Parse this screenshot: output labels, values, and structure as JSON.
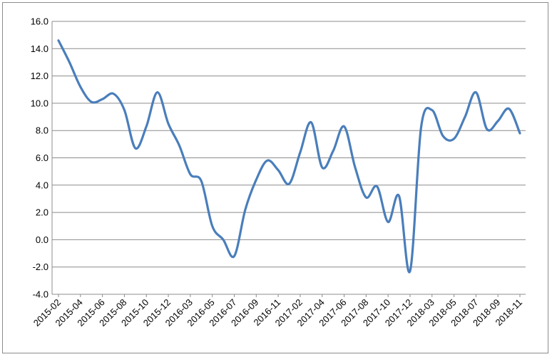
{
  "chart_data": {
    "type": "line",
    "title": "",
    "xlabel": "",
    "ylabel": "",
    "ylim": [
      -4.0,
      16.0
    ],
    "y_ticks": [
      "16.0",
      "14.0",
      "12.0",
      "10.0",
      "8.0",
      "6.0",
      "4.0",
      "2.0",
      "0.0",
      "-2.0",
      "-4.0"
    ],
    "y_tick_values": [
      16,
      14,
      12,
      10,
      8,
      6,
      4,
      2,
      0,
      -2,
      -4
    ],
    "x_tick_labels": [
      "2015-02",
      "2015-04",
      "2015-06",
      "2015-08",
      "2015-10",
      "2015-12",
      "2016-03",
      "2016-05",
      "2016-07",
      "2016-09",
      "2016-11",
      "2017-02",
      "2017-04",
      "2017-06",
      "2017-08",
      "2017-10",
      "2017-12",
      "2018-03",
      "2018-05",
      "2018-07",
      "2018-09",
      "2018-11"
    ],
    "grid": "horizontal",
    "legend": "none",
    "line_color": "#4a7ebb",
    "series": [
      {
        "values": [
          14.6,
          13.0,
          11.2,
          10.1,
          10.3,
          10.7,
          9.5,
          6.7,
          8.3,
          10.8,
          8.5,
          6.9,
          4.8,
          4.3,
          1.0,
          0.0,
          -1.2,
          2.2,
          4.4,
          5.8,
          5.1,
          4.1,
          6.4,
          8.6,
          5.3,
          6.5,
          8.3,
          5.3,
          3.1,
          3.9,
          1.3,
          3.2,
          -2.3,
          8.2,
          9.5,
          7.6,
          7.4,
          9.0,
          10.8,
          8.1,
          8.7,
          9.6,
          7.8
        ]
      }
    ]
  }
}
